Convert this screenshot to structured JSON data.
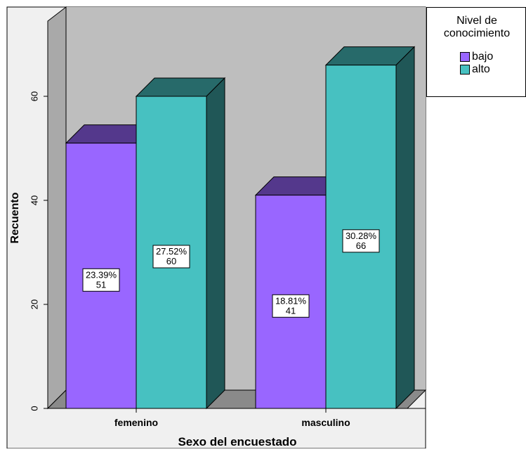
{
  "chart_data": {
    "type": "bar",
    "categories": [
      "femenino",
      "masculino"
    ],
    "xlabel": "Sexo del encuestado",
    "ylabel": "Recuento",
    "ylim": [
      0,
      72
    ],
    "yticks": [
      0,
      20,
      40,
      60
    ],
    "legend_title": "Nivel de conocimiento",
    "legend_placement": "right",
    "grid": false,
    "series": [
      {
        "name": "bajo",
        "values": [
          51,
          41
        ],
        "labels": [
          "23.39%",
          "18.81%"
        ],
        "color": "#9966FF"
      },
      {
        "name": "alto",
        "values": [
          60,
          66
        ],
        "labels": [
          "27.52%",
          "30.28%"
        ],
        "color": "#47C1C1"
      }
    ]
  }
}
